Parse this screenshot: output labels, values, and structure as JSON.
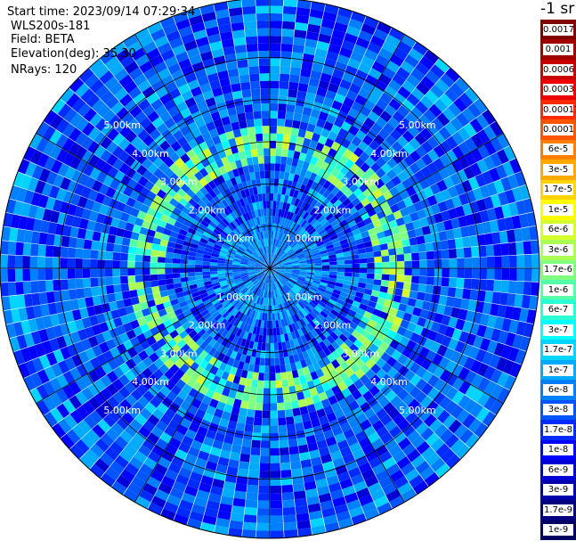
{
  "info": {
    "start_time": "Start time: 2023/09/14 07:29:34",
    "device": "WLS200s-181",
    "field": "Field: BETA",
    "elevation": "Elevation(deg): 35.30",
    "nrays": "NRays: 120"
  },
  "colorbar": {
    "unit_label": "-1 sr",
    "segments": [
      {
        "label": "0.0017",
        "color": "#800000"
      },
      {
        "label": "0.001",
        "color": "#a00000"
      },
      {
        "label": "0.0006",
        "color": "#c80000"
      },
      {
        "label": "0.0003",
        "color": "#ee0000"
      },
      {
        "label": "0.00017",
        "color": "#ff2a00"
      },
      {
        "label": "0.0001",
        "color": "#ff5500"
      },
      {
        "label": "6e-5",
        "color": "#ff8000"
      },
      {
        "label": "3e-5",
        "color": "#ffaa00"
      },
      {
        "label": "1.7e-5",
        "color": "#ffd400"
      },
      {
        "label": "1e-5",
        "color": "#ffff00"
      },
      {
        "label": "6e-6",
        "color": "#d4ff2b"
      },
      {
        "label": "3e-6",
        "color": "#aaff55"
      },
      {
        "label": "1.7e-6",
        "color": "#80ff80"
      },
      {
        "label": "1e-6",
        "color": "#55ffaa"
      },
      {
        "label": "6e-7",
        "color": "#2bffd4"
      },
      {
        "label": "3e-7",
        "color": "#00ffff"
      },
      {
        "label": "1.7e-7",
        "color": "#00d4ff"
      },
      {
        "label": "1e-7",
        "color": "#00aaff"
      },
      {
        "label": "6e-8",
        "color": "#0080ff"
      },
      {
        "label": "3e-8",
        "color": "#0055ff"
      },
      {
        "label": "1.7e-8",
        "color": "#002bff"
      },
      {
        "label": "1e-8",
        "color": "#0000ff"
      },
      {
        "label": "6e-9",
        "color": "#0000d4"
      },
      {
        "label": "3e-9",
        "color": "#0000aa"
      },
      {
        "label": "1.7e-9",
        "color": "#000080"
      },
      {
        "label": "1e-9",
        "color": "#000060"
      }
    ]
  },
  "chart_data": {
    "type": "heatmap",
    "subtype": "polar-ppi-scan",
    "title": "",
    "field": "BETA",
    "elevation_deg": 35.3,
    "n_rays": 120,
    "range_rings_km": [
      1.0,
      2.0,
      3.0,
      4.0,
      5.0
    ],
    "range_labels": [
      "1.00km",
      "2.00km",
      "3.00km",
      "4.00km",
      "5.00km"
    ],
    "max_range_km": 6.4,
    "color_scale": "log",
    "value_range": [
      1e-09,
      0.0017
    ],
    "background_value": 3e-08,
    "enhanced_ring_km": [
      2.5,
      3.3
    ],
    "enhanced_ring_value": 1.7e-06,
    "grid": true
  }
}
